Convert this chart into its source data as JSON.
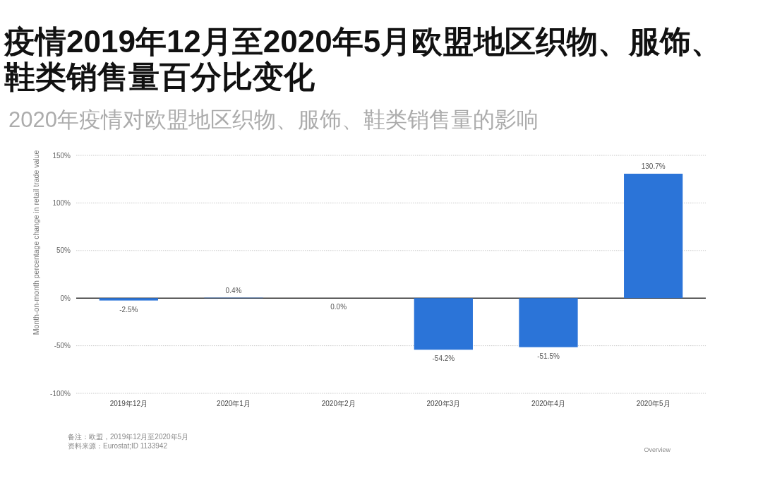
{
  "chart_data": {
    "type": "bar",
    "title": "疫情2019年12月至2020年5月欧盟地区织物、服饰、鞋类销售量百分比变化",
    "subtitle": "2020年疫情对欧盟地区织物、服饰、鞋类销售量的影响",
    "ylabel": "Month-on-month percentage change in retail trade value",
    "categories": [
      "2019年12月",
      "2020年1月",
      "2020年2月",
      "2020年3月",
      "2020年4月",
      "2020年5月"
    ],
    "values": [
      -2.5,
      0.4,
      0.0,
      -54.2,
      -51.5,
      130.7
    ],
    "value_labels": [
      "-2.5%",
      "0.4%",
      "0.0%",
      "-54.2%",
      "-51.5%",
      "130.7%"
    ],
    "color": "#2b74d8",
    "ylim": [
      -100,
      150
    ],
    "yticks": [
      {
        "value": -100,
        "label": "-100%"
      },
      {
        "value": -50,
        "label": "-50%"
      },
      {
        "value": 0,
        "label": "0%"
      },
      {
        "value": 50,
        "label": "50%"
      },
      {
        "value": 100,
        "label": "100%"
      },
      {
        "value": 150,
        "label": "150%"
      }
    ],
    "grid": "y",
    "annotations": [
      "备注：欧盟，2019年12月至2020年5月",
      "资料来源：Eurostat;ID 1133942",
      "Overview"
    ]
  }
}
